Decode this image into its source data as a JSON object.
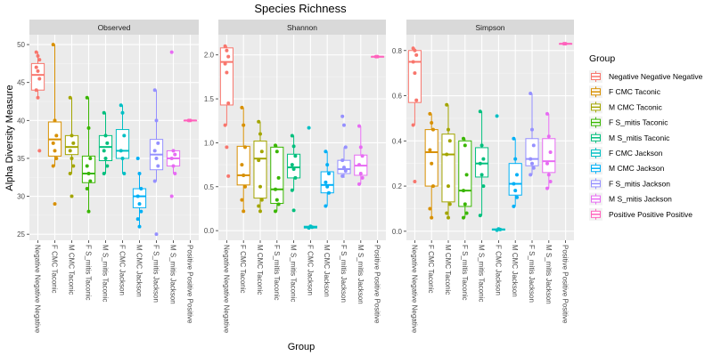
{
  "chart_data": {
    "type": "box",
    "title": "Species Richness",
    "xlabel": "Group",
    "ylabel": "Alpha Diversity Measure",
    "legend": {
      "title": "Group",
      "placement": "right",
      "entries": [
        {
          "name": "Negative Negative Negative",
          "color": "#F8766D"
        },
        {
          "name": "F CMC Taconic",
          "color": "#D89000"
        },
        {
          "name": "M CMC Taconic",
          "color": "#A3A500"
        },
        {
          "name": "F S_mitis Taconic",
          "color": "#39B600"
        },
        {
          "name": "M S_mitis Taconic",
          "color": "#00BF7D"
        },
        {
          "name": "F CMC Jackson",
          "color": "#00BFC4"
        },
        {
          "name": "M CMC Jackson",
          "color": "#00B0F6"
        },
        {
          "name": "F S_mitis Jackson",
          "color": "#9590FF"
        },
        {
          "name": "M S_mitis Jackson",
          "color": "#E76BF3"
        },
        {
          "name": "Positive Positive Positive",
          "color": "#FF62BC"
        }
      ]
    },
    "categories": [
      "Negative Negative Negative",
      "F CMC Taconic",
      "M CMC Taconic",
      "F S_mitis Taconic",
      "M S_mitis Taconic",
      "F CMC Jackson",
      "M CMC Jackson",
      "F S_mitis Jackson",
      "M S_mitis Jackson",
      "Positive Positive Positive"
    ],
    "panels": [
      {
        "name": "Observed",
        "ylim": [
          24.2,
          51.3
        ],
        "yticks": [
          25,
          30,
          35,
          40,
          45,
          50
        ],
        "ytick_labels": [
          "25",
          "30",
          "35",
          "40",
          "45",
          "50"
        ],
        "boxes": [
          {
            "q1": 44,
            "median": 46,
            "q3": 47.5,
            "whisker_low": 43,
            "whisker_high": 49,
            "points": [
              49,
              48.5,
              48,
              47,
              46.5,
              45.5,
              44,
              43,
              36
            ]
          },
          {
            "q1": 35.3,
            "median": 37.5,
            "q3": 39.8,
            "whisker_low": 34,
            "whisker_high": 50,
            "points": [
              50,
              40,
              38,
              37,
              36,
              35,
              34,
              29
            ]
          },
          {
            "q1": 35.5,
            "median": 36.5,
            "q3": 38,
            "whisker_low": 33,
            "whisker_high": 43,
            "points": [
              43,
              38,
              37,
              36,
              35,
              34,
              33,
              30
            ]
          },
          {
            "q1": 31.8,
            "median": 33,
            "q3": 35.3,
            "whisker_low": 28,
            "whisker_high": 43,
            "points": [
              43,
              39,
              35,
              34,
              33,
              32,
              31,
              28
            ]
          },
          {
            "q1": 34.7,
            "median": 36.5,
            "q3": 38,
            "whisker_low": 33,
            "whisker_high": 41,
            "points": [
              41,
              38,
              37,
              36,
              35,
              34,
              33
            ]
          },
          {
            "q1": 35,
            "median": 36,
            "q3": 38.8,
            "whisker_low": 33,
            "whisker_high": 42,
            "points": [
              42,
              41,
              38,
              36,
              35,
              33
            ]
          },
          {
            "q1": 28.5,
            "median": 30,
            "q3": 31,
            "whisker_low": 26,
            "whisker_high": 33,
            "points": [
              35,
              33,
              31,
              30,
              29,
              28,
              27,
              26
            ]
          },
          {
            "q1": 33.5,
            "median": 35.5,
            "q3": 37.5,
            "whisker_low": 32,
            "whisker_high": 44,
            "points": [
              44,
              40,
              37,
              36,
              35,
              34,
              32,
              25
            ]
          },
          {
            "q1": 34,
            "median": 35,
            "q3": 36,
            "whisker_low": 33,
            "whisker_high": 36,
            "points": [
              49,
              36,
              35.5,
              35,
              34,
              33,
              30
            ]
          },
          {
            "q1": 40,
            "median": 40,
            "q3": 40,
            "whisker_low": 40,
            "whisker_high": 40,
            "points": [
              40,
              40
            ]
          }
        ]
      },
      {
        "name": "Shannon",
        "ylim": [
          -0.11,
          2.23
        ],
        "yticks": [
          0,
          0.5,
          1,
          1.5,
          2
        ],
        "ytick_labels": [
          "0.0",
          "0.5",
          "1.0",
          "1.5",
          "2.0"
        ],
        "boxes": [
          {
            "q1": 1.43,
            "median": 1.92,
            "q3": 2.08,
            "whisker_low": 1.2,
            "whisker_high": 2.1,
            "points": [
              2.1,
              2.05,
              1.98,
              1.9,
              1.8,
              1.45,
              1.2,
              0.95,
              0.62
            ]
          },
          {
            "q1": 0.52,
            "median": 0.63,
            "q3": 0.96,
            "whisker_low": 0.22,
            "whisker_high": 1.4,
            "points": [
              1.4,
              1.2,
              0.95,
              0.75,
              0.63,
              0.5,
              0.35,
              0.22
            ]
          },
          {
            "q1": 0.37,
            "median": 0.82,
            "q3": 1.02,
            "whisker_low": 0.22,
            "whisker_high": 1.24,
            "points": [
              1.24,
              1.1,
              0.9,
              0.8,
              0.5,
              0.35,
              0.28,
              0.22
            ]
          },
          {
            "q1": 0.31,
            "median": 0.47,
            "q3": 0.95,
            "whisker_low": 0.22,
            "whisker_high": 0.97,
            "points": [
              0.97,
              0.9,
              0.6,
              0.47,
              0.35,
              0.3,
              0.22
            ]
          },
          {
            "q1": 0.6,
            "median": 0.72,
            "q3": 0.87,
            "whisker_low": 0.46,
            "whisker_high": 1.08,
            "points": [
              1.08,
              0.96,
              0.85,
              0.75,
              0.7,
              0.6,
              0.46,
              0.23
            ]
          },
          {
            "q1": 0.03,
            "median": 0.04,
            "q3": 0.05,
            "whisker_low": 0.03,
            "whisker_high": 0.05,
            "points": [
              1.17,
              0.05,
              0.04,
              0.03
            ]
          },
          {
            "q1": 0.43,
            "median": 0.52,
            "q3": 0.67,
            "whisker_low": 0.28,
            "whisker_high": 0.9,
            "points": [
              0.9,
              0.75,
              0.65,
              0.55,
              0.5,
              0.43,
              0.28
            ]
          },
          {
            "q1": 0.65,
            "median": 0.7,
            "q3": 0.8,
            "whisker_low": 0.6,
            "whisker_high": 0.95,
            "points": [
              1.3,
              1.2,
              0.95,
              0.8,
              0.72,
              0.68,
              0.62
            ]
          },
          {
            "q1": 0.63,
            "median": 0.74,
            "q3": 0.86,
            "whisker_low": 0.53,
            "whisker_high": 1.19,
            "points": [
              1.19,
              0.95,
              0.85,
              0.75,
              0.65,
              0.6,
              0.53
            ]
          },
          {
            "q1": 1.98,
            "median": 1.98,
            "q3": 1.98,
            "whisker_low": 1.98,
            "whisker_high": 1.98,
            "points": [
              1.98,
              1.98
            ]
          }
        ]
      },
      {
        "name": "Simpson",
        "ylim": [
          -0.04,
          0.87
        ],
        "yticks": [
          0,
          0.2,
          0.4,
          0.6,
          0.8
        ],
        "ytick_labels": [
          "0.0",
          "0.2",
          "0.4",
          "0.6",
          "0.8"
        ],
        "boxes": [
          {
            "q1": 0.57,
            "median": 0.75,
            "q3": 0.8,
            "whisker_low": 0.47,
            "whisker_high": 0.81,
            "points": [
              0.81,
              0.8,
              0.78,
              0.75,
              0.7,
              0.58,
              0.47,
              0.22
            ]
          },
          {
            "q1": 0.2,
            "median": 0.35,
            "q3": 0.45,
            "whisker_low": 0.06,
            "whisker_high": 0.52,
            "points": [
              0.52,
              0.48,
              0.45,
              0.36,
              0.3,
              0.2,
              0.1,
              0.06
            ]
          },
          {
            "q1": 0.13,
            "median": 0.34,
            "q3": 0.43,
            "whisker_low": 0.06,
            "whisker_high": 0.56,
            "points": [
              0.56,
              0.45,
              0.4,
              0.34,
              0.2,
              0.12,
              0.08,
              0.06
            ]
          },
          {
            "q1": 0.11,
            "median": 0.18,
            "q3": 0.4,
            "whisker_low": 0.06,
            "whisker_high": 0.41,
            "points": [
              0.41,
              0.38,
              0.25,
              0.18,
              0.12,
              0.08,
              0.06
            ]
          },
          {
            "q1": 0.24,
            "median": 0.3,
            "q3": 0.37,
            "whisker_low": 0.07,
            "whisker_high": 0.53,
            "points": [
              0.53,
              0.38,
              0.32,
              0.3,
              0.25,
              0.2,
              0.07
            ]
          },
          {
            "q1": 0.005,
            "median": 0.008,
            "q3": 0.01,
            "whisker_low": 0.005,
            "whisker_high": 0.01,
            "points": [
              0.51,
              0.01,
              0.008,
              0.005
            ]
          },
          {
            "q1": 0.16,
            "median": 0.21,
            "q3": 0.3,
            "whisker_low": 0.11,
            "whisker_high": 0.41,
            "points": [
              0.41,
              0.32,
              0.25,
              0.21,
              0.18,
              0.15,
              0.11
            ]
          },
          {
            "q1": 0.29,
            "median": 0.32,
            "q3": 0.41,
            "whisker_low": 0.25,
            "whisker_high": 0.61,
            "points": [
              0.61,
              0.45,
              0.38,
              0.32,
              0.3,
              0.28,
              0.25
            ]
          },
          {
            "q1": 0.26,
            "median": 0.31,
            "q3": 0.41,
            "whisker_low": 0.19,
            "whisker_high": 0.52,
            "points": [
              0.52,
              0.42,
              0.35,
              0.3,
              0.25,
              0.22,
              0.19
            ]
          },
          {
            "q1": 0.83,
            "median": 0.83,
            "q3": 0.83,
            "whisker_low": 0.83,
            "whisker_high": 0.83,
            "points": [
              0.83,
              0.83
            ]
          }
        ]
      }
    ]
  }
}
